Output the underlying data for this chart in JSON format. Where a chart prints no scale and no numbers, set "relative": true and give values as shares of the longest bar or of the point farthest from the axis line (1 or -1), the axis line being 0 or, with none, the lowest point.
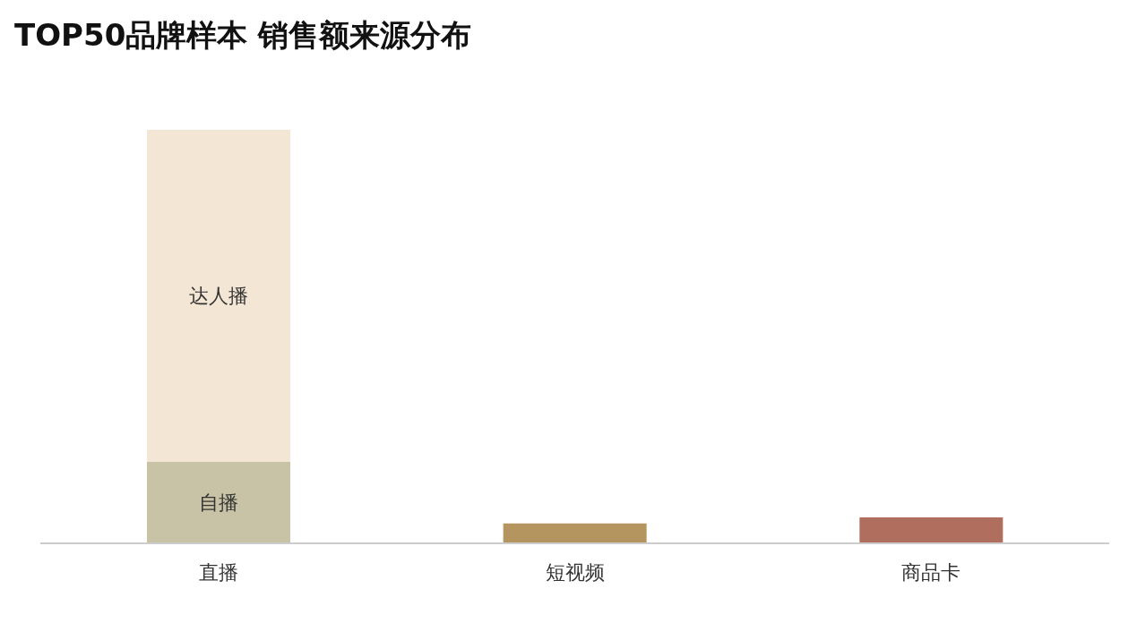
{
  "chart_data": {
    "type": "bar",
    "title": "TOP50品牌样本 销售额来源分布",
    "categories": [
      "直播",
      "短视频",
      "商品卡"
    ],
    "stacked": true,
    "relative": true,
    "legend": false,
    "grid": false,
    "series": [
      {
        "name": "自播",
        "colors": [
          "#c8c3a6",
          "#b5955f",
          "#b06e5f"
        ],
        "values": [
          0.197,
          0.048,
          0.063
        ]
      },
      {
        "name": "达人播",
        "color": "#f3e6d4",
        "values": [
          0.803,
          null,
          null
        ]
      }
    ]
  }
}
